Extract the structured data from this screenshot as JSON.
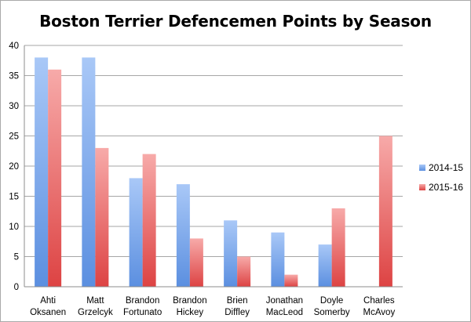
{
  "chart_data": {
    "type": "bar",
    "title": "Boston Terrier Defencemen Points by Season",
    "xlabel": "",
    "ylabel": "",
    "ylim": [
      0,
      40
    ],
    "yticks": [
      0,
      5,
      10,
      15,
      20,
      25,
      30,
      35,
      40
    ],
    "grid": true,
    "legend_position": "right",
    "categories": [
      [
        "Ahti",
        "Oksanen"
      ],
      [
        "Matt",
        "Grzelcyk"
      ],
      [
        "Brandon",
        "Fortunato"
      ],
      [
        "Brandon",
        "Hickey"
      ],
      [
        "Brien",
        "Diffley"
      ],
      [
        "Jonathan",
        "MacLeod"
      ],
      [
        "Doyle",
        "Somerby"
      ],
      [
        "Charles",
        "McAvoy"
      ]
    ],
    "series": [
      {
        "name": "2014-15",
        "values": [
          38,
          38,
          18,
          17,
          11,
          9,
          7,
          0
        ],
        "color": "#5b8fe0",
        "color_light": "#a9c8f7"
      },
      {
        "name": "2015-16",
        "values": [
          36,
          23,
          22,
          8,
          5,
          2,
          13,
          25
        ],
        "color": "#dd4343",
        "color_light": "#f7aaa9"
      }
    ]
  }
}
